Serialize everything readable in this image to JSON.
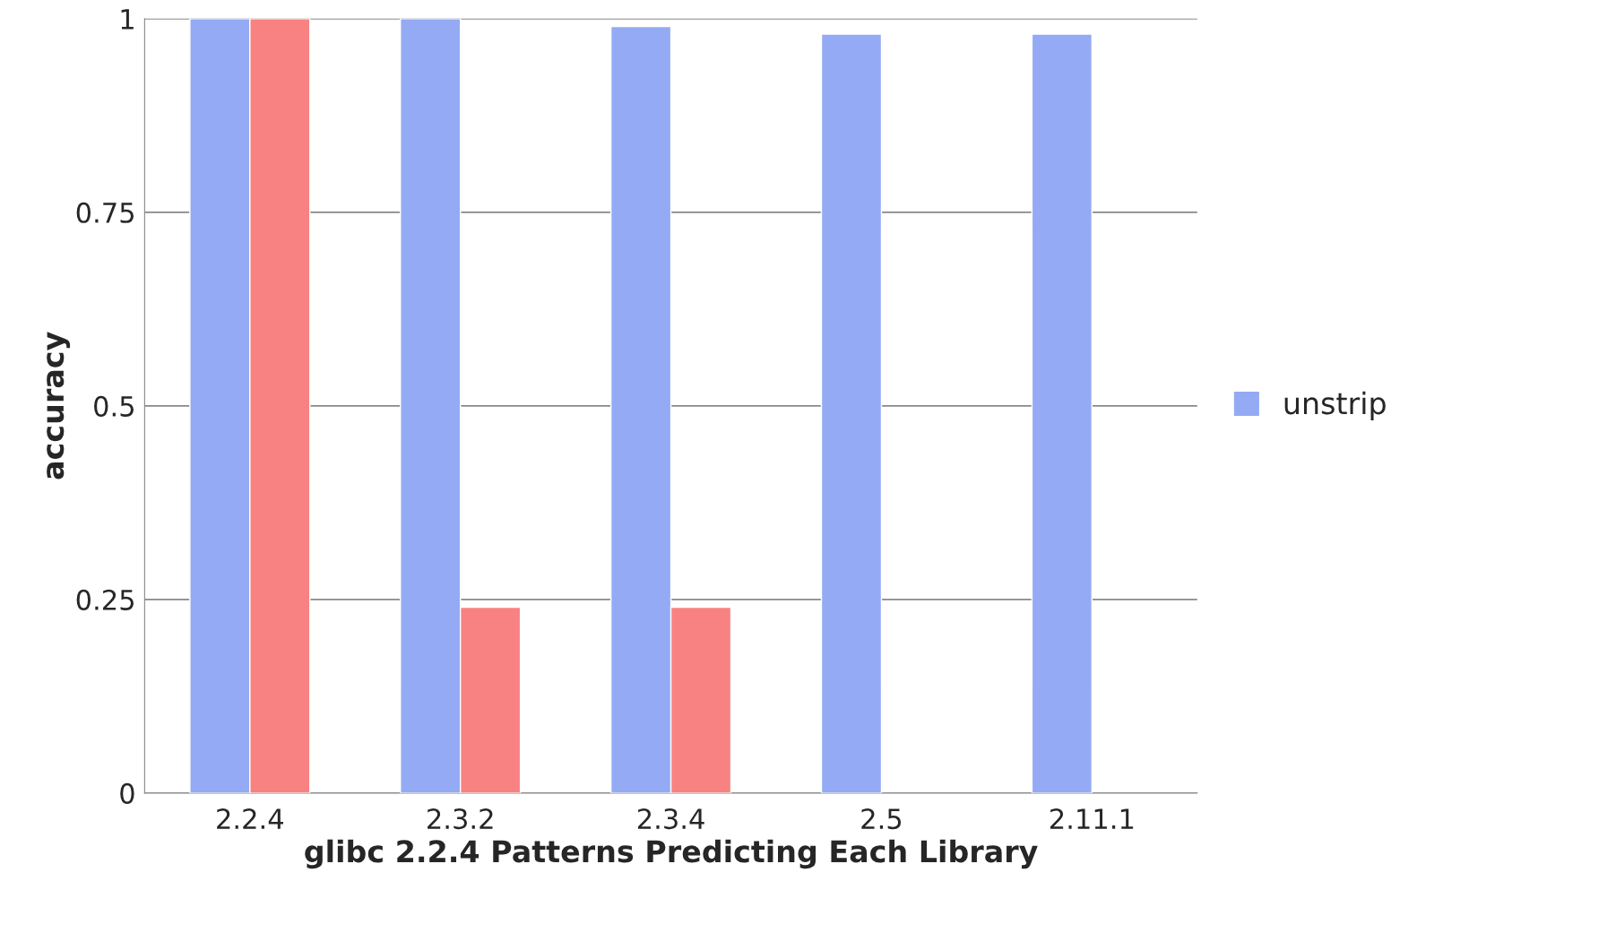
{
  "chart_data": {
    "type": "bar",
    "xlabel": "glibc 2.2.4 Patterns Predicting Each Library",
    "ylabel": "accuracy",
    "categories": [
      "2.2.4",
      "2.3.2",
      "2.3.4",
      "2.5",
      "2.11.1"
    ],
    "series": [
      {
        "name": "unstrip",
        "color": "#94aaf4",
        "values": [
          1,
          1,
          0.99,
          0.98,
          0.98
        ]
      },
      {
        "color": "#f88282",
        "values": [
          1,
          0.24,
          0.24,
          null,
          null
        ]
      }
    ],
    "ylim": [
      0,
      1
    ],
    "yticks": [
      0,
      0.25,
      0.5,
      0.75,
      1
    ],
    "grid": "y",
    "legend": "right"
  }
}
